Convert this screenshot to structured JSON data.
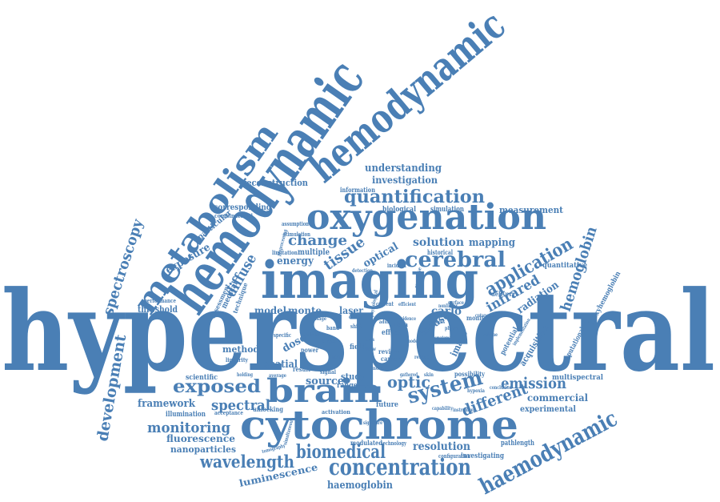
{
  "colors": {
    "word": "#4a7fb5",
    "background": "#ffffff"
  },
  "words": {
    "hyperspectral": "hyperspectral",
    "hemodynamic": "hemodynamic",
    "hemodynamic_top": "hemodynamic",
    "metabolism": "metabolism",
    "imaging": "imaging",
    "oxygenation": "oxygenation",
    "cytochrome": "cytochrome",
    "brain": "brain",
    "haemodynamic": "haemodynamic",
    "concentration": "concentration",
    "biomedical": "biomedical",
    "quantification": "quantification",
    "cerebral": "cerebral",
    "spectroscopy": "spectroscopy",
    "development": "development",
    "system": "system",
    "application": "application",
    "hemoglobin": "hemoglobin",
    "exposed": "exposed",
    "wavelength": "wavelength",
    "monitoring": "monitoring",
    "emission": "emission",
    "different": "different",
    "infrared": "infrared",
    "optic": "optic",
    "tissue": "tissue",
    "change": "change",
    "spectral": "spectral",
    "diffuse": "diffuse",
    "understanding": "understanding",
    "investigation": "investigation",
    "measurement": "measurement",
    "reconstruction": "reconstruction",
    "corresponding": "corresponding",
    "particular": "particular",
    "exposure": "exposure",
    "energy": "energy",
    "multiple": "multiple",
    "optical": "optical",
    "solution": "solution",
    "mapping": "mapping",
    "model": "model",
    "monte": "monte",
    "laser": "laser",
    "carlo": "carlo",
    "radiation": "radiation",
    "threshold": "threshold",
    "method": "method",
    "dose": "dose",
    "spatial": "spatial",
    "source": "source",
    "framework": "framework",
    "fluorescence": "fluorescence",
    "nanoparticles": "nanoparticles",
    "luminescence": "luminescence",
    "haemoglobin": "haemoglobin",
    "resolution": "resolution",
    "commercial": "commercial",
    "experimental": "experimental",
    "multispectral": "multispectral",
    "investigating": "investigating",
    "pathlength": "pathlength",
    "deoxyhemoglobin": "deoxyhemoglobin",
    "computational": "computational",
    "acquisition": "acquisition",
    "potential": "potential",
    "quantitative": "quantitative",
    "mouse": "mouse",
    "image": "image",
    "information": "information",
    "biological": "biological",
    "simulation": "simulation",
    "historical": "historical",
    "scientific": "scientific",
    "illumination": "illumination",
    "medical": "medical",
    "technique": "technique",
    "assessment": "assessment",
    "study": "study",
    "range": "range",
    "future": "future",
    "data": "data",
    "field": "field",
    "effect": "effect",
    "review": "review",
    "camera": "camera",
    "modulated": "modulated",
    "unlocking": "unlocking",
    "monitor": "monitor",
    "delivery": "delivery",
    "possibility": "possibility",
    "power": "power",
    "result": "result",
    "limitation": "limitation",
    "combinatorial": "combinatorial",
    "performance": "performance",
    "acceptance": "acceptance",
    "activation": "activation",
    "configuration": "configuration",
    "technology": "technology",
    "signal": "signal",
    "assumption": "assumption",
    "stimulation": "stimulation",
    "incident": "incident",
    "detection": "detection",
    "current": "current",
    "linearity": "linearity",
    "average": "average",
    "capability": "capability",
    "specific": "specific",
    "band": "band",
    "shift": "shift",
    "response": "response",
    "hypoxia": "hypoxia",
    "cellular": "cellular",
    "physiological": "physiological",
    "conclusion": "conclusion",
    "cutaneous": "cutaneous",
    "surface": "surface",
    "target": "target",
    "efficient": "efficient",
    "nonlinear": "nonlinear",
    "gathered": "gathered",
    "evidence": "evidence",
    "phase": "phase",
    "novel": "novel",
    "reflect": "reflect",
    "tomography": "tomography",
    "simultaneous": "simultaneous",
    "holding": "holding",
    "instrument": "instrument",
    "lens": "lens",
    "mode": "mode",
    "preprocessing": "preprocessing",
    "skin": "skin",
    "usage": "usage",
    "liquid": "liquid",
    "process": "process",
    "adult": "adult",
    "signature": "signature",
    "hematoma": "hematoma",
    "implementation": "implementation",
    "clinical": "clinical",
    "flow": "flow",
    "volume": "volume"
  }
}
